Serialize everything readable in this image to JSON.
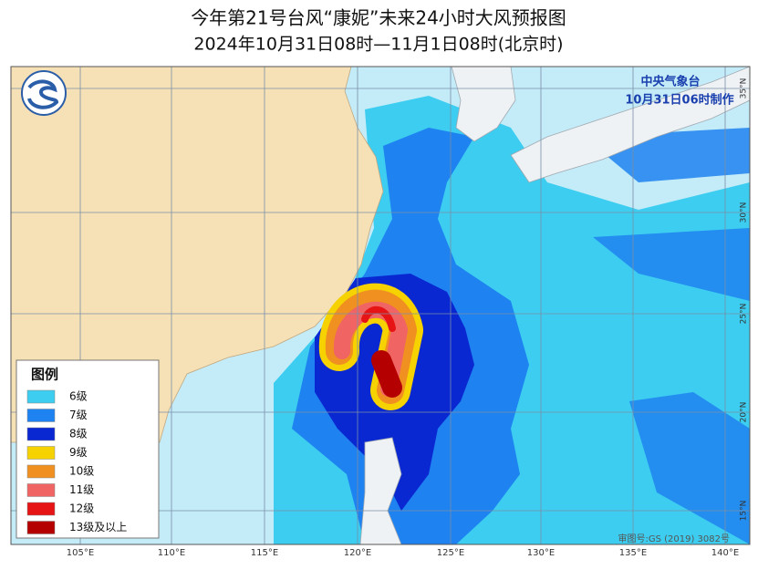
{
  "title": "今年第21号台风“康妮”未来24小时大风预报图",
  "subtitle": "2024年10月31日08时—11月1日08时(北京时)",
  "agency": "中央气象台",
  "issued": "10月31日06时制作",
  "legend": {
    "title": "图例",
    "items": [
      {
        "label": "6级",
        "color": "#3ccdf0"
      },
      {
        "label": "7级",
        "color": "#1e82f0"
      },
      {
        "label": "8级",
        "color": "#0a28d2"
      },
      {
        "label": "9级",
        "color": "#f5d200"
      },
      {
        "label": "10级",
        "color": "#f09020"
      },
      {
        "label": "11级",
        "color": "#f06464"
      },
      {
        "label": "12级",
        "color": "#e61414"
      },
      {
        "label": "13级及以上",
        "color": "#b40000"
      }
    ]
  },
  "longitude_labels": [
    "105°E",
    "110°E",
    "115°E",
    "120°E",
    "125°E",
    "130°E",
    "135°E",
    "140°E"
  ],
  "latitude_labels": [
    "35°N",
    "30°N",
    "25°N",
    "20°N",
    "15°N"
  ],
  "approval": "审图号:GS (2019) 3082号"
}
